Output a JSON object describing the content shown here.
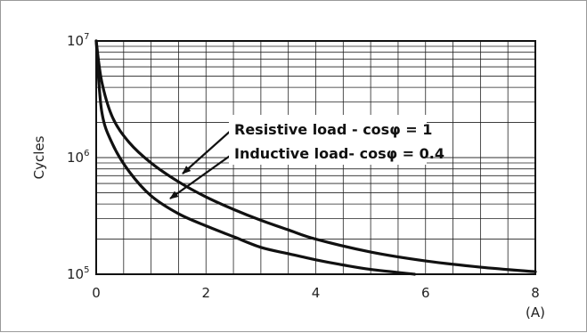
{
  "chart_data": {
    "type": "line",
    "ylabel": "Cycles",
    "xunit": "(A)",
    "xlim": [
      0,
      8
    ],
    "ylim": [
      100000,
      10000000
    ],
    "yscale": "log",
    "x_ticks": [
      "0",
      "2",
      "4",
      "6",
      "8"
    ],
    "y_ticks": [
      {
        "base": "10",
        "exp": "5",
        "value": 100000
      },
      {
        "base": "10",
        "exp": "6",
        "value": 1000000
      },
      {
        "base": "10",
        "exp": "7",
        "value": 10000000
      }
    ],
    "grid": true,
    "series": [
      {
        "name": "Resistive load - cosφ = 1",
        "points": [
          [
            0,
            10000000
          ],
          [
            0.1,
            4500000
          ],
          [
            0.3,
            2200000
          ],
          [
            0.6,
            1350000
          ],
          [
            1,
            900000
          ],
          [
            1.5,
            620000
          ],
          [
            2,
            460000
          ],
          [
            2.5,
            360000
          ],
          [
            3,
            290000
          ],
          [
            3.5,
            240000
          ],
          [
            4,
            200000
          ],
          [
            5,
            155000
          ],
          [
            6,
            130000
          ],
          [
            7,
            115000
          ],
          [
            8,
            105000
          ]
        ],
        "color": "#111111"
      },
      {
        "name": "Inductive load- cosφ = 0.4",
        "points": [
          [
            0,
            10000000
          ],
          [
            0.1,
            2500000
          ],
          [
            0.3,
            1300000
          ],
          [
            0.6,
            760000
          ],
          [
            1,
            470000
          ],
          [
            1.5,
            330000
          ],
          [
            2,
            260000
          ],
          [
            2.5,
            210000
          ],
          [
            3,
            170000
          ],
          [
            3.5,
            150000
          ],
          [
            4,
            133000
          ],
          [
            4.5,
            120000
          ],
          [
            5,
            110000
          ],
          [
            5.8,
            100000
          ]
        ],
        "color": "#111111"
      }
    ],
    "annotations": [
      {
        "text": "Resistive load - cosφ = 1",
        "series": 0
      },
      {
        "text": "Inductive load- cosφ = 0.4",
        "series": 1
      }
    ]
  }
}
